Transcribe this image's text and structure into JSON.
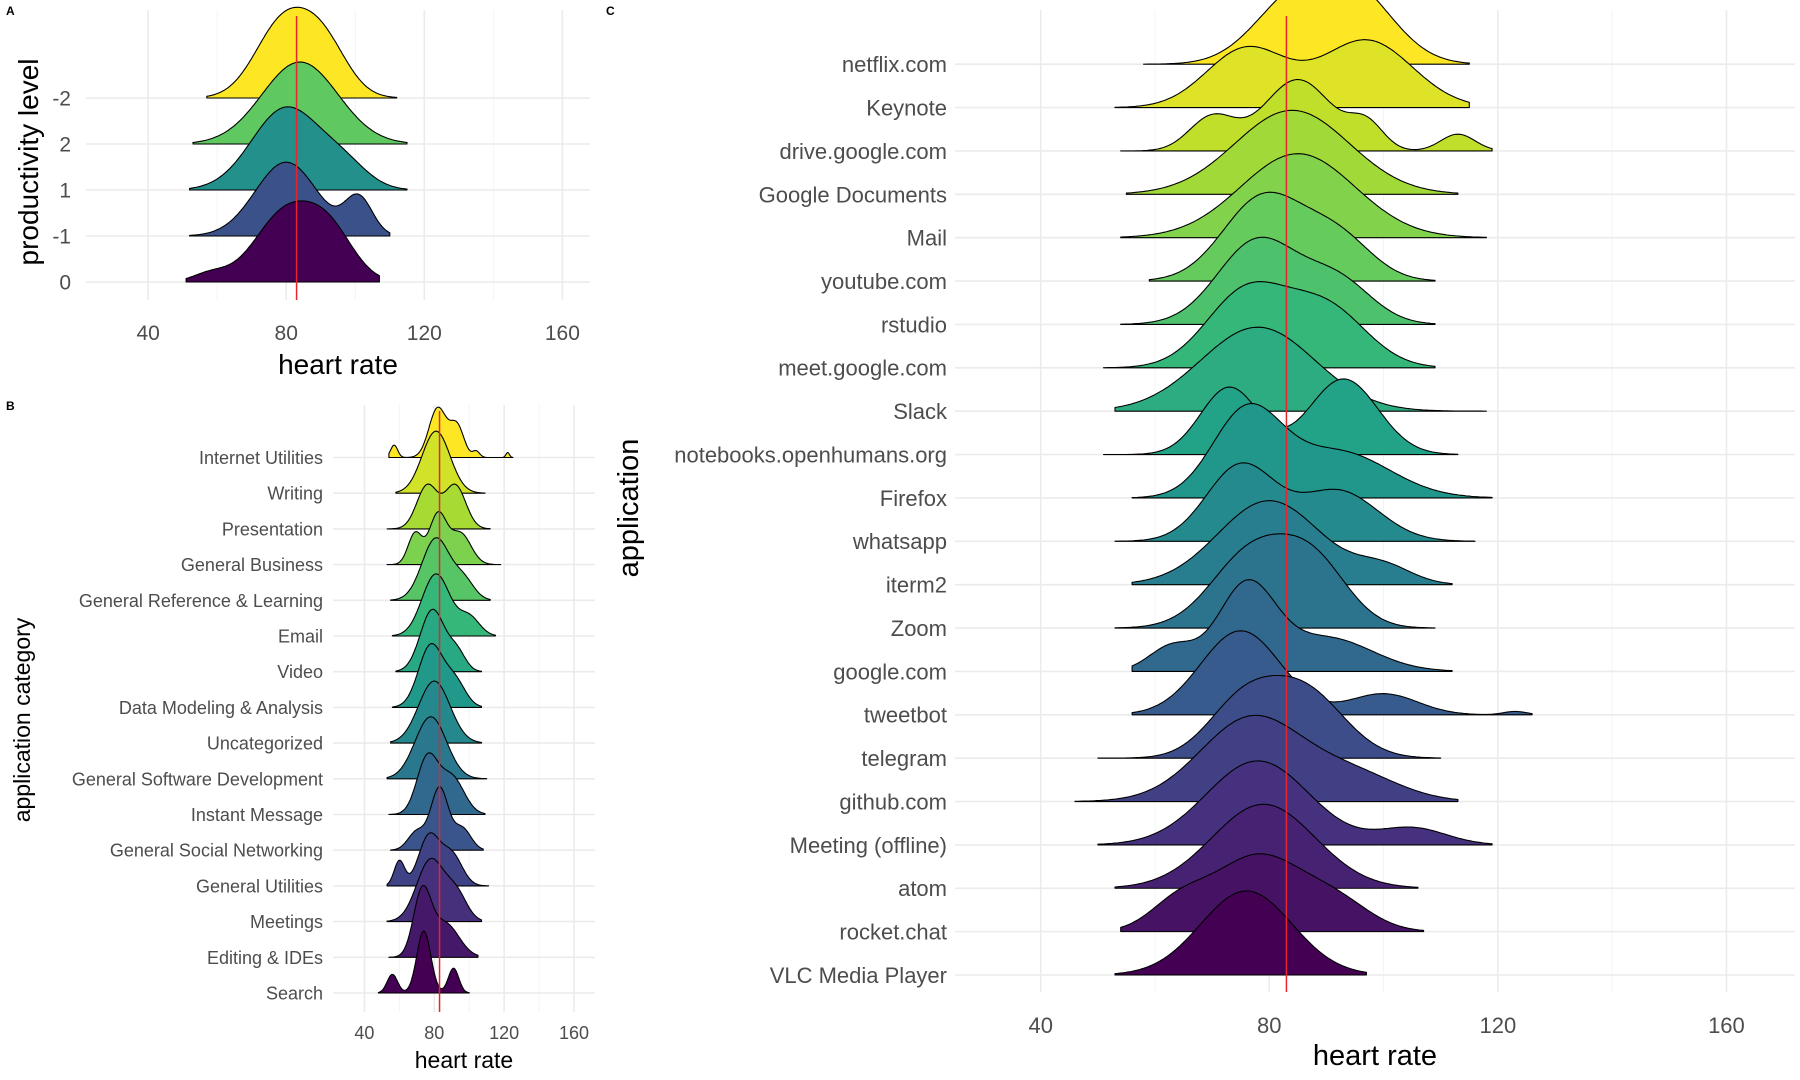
{
  "panel_tags": {
    "A": "A",
    "B": "B",
    "C": "C"
  },
  "colors": {
    "reference_line": "#e8242c",
    "palette": "viridis"
  },
  "chart_data": [
    {
      "id": "A",
      "type": "ridgeline",
      "xlabel": "heart rate",
      "ylabel": "productivity level",
      "xlim": [
        22,
        168
      ],
      "x_ticks": [
        40,
        80,
        120,
        160
      ],
      "reference_x": 83,
      "categories": [
        "0",
        "-1",
        "1",
        "2",
        "-2"
      ],
      "series": [
        {
          "name": "0",
          "range": [
            51,
            107
          ],
          "comps": [
            [
              58,
              5,
              0.1
            ],
            [
              80,
              9,
              0.85
            ],
            [
              93,
              7,
              0.5
            ]
          ]
        },
        {
          "name": "-1",
          "range": [
            52,
            110
          ],
          "comps": [
            [
              80,
              9,
              0.9
            ],
            [
              101,
              4,
              0.45
            ]
          ]
        },
        {
          "name": "1",
          "range": [
            52,
            115
          ],
          "comps": [
            [
              80,
              10,
              1.0
            ],
            [
              97,
              7,
              0.25
            ]
          ]
        },
        {
          "name": "2",
          "range": [
            53,
            115
          ],
          "comps": [
            [
              84,
              11,
              1.0
            ]
          ]
        },
        {
          "name": "-2",
          "range": [
            57,
            112
          ],
          "comps": [
            [
              79,
              8,
              0.9
            ],
            [
              91,
              7,
              0.6
            ]
          ]
        }
      ]
    },
    {
      "id": "B",
      "type": "ridgeline",
      "xlabel": "heart rate",
      "ylabel": "application category",
      "xlim": [
        22,
        172
      ],
      "x_ticks": [
        40,
        80,
        120,
        160
      ],
      "reference_x": 83,
      "categories": [
        "Search",
        "Editing & IDEs",
        "Meetings",
        "General Utilities",
        "General Social Networking",
        "Instant Message",
        "General Software Development",
        "Uncategorized",
        "Data Modeling & Analysis",
        "Video",
        "Email",
        "General Reference & Learning",
        "General Business",
        "Presentation",
        "Writing",
        "Internet Utilities"
      ],
      "series": [
        {
          "name": "Search",
          "range": [
            48,
            100
          ],
          "comps": [
            [
              56,
              3,
              0.3
            ],
            [
              74,
              4,
              1.0
            ],
            [
              91,
              3,
              0.4
            ]
          ]
        },
        {
          "name": "Editing & IDEs",
          "range": [
            54,
            105
          ],
          "comps": [
            [
              73,
              5,
              1.0
            ],
            [
              86,
              8,
              0.55
            ]
          ]
        },
        {
          "name": "Meetings",
          "range": [
            53,
            107
          ],
          "comps": [
            [
              78,
              8,
              1.0
            ],
            [
              93,
              6,
              0.4
            ]
          ]
        },
        {
          "name": "General Utilities",
          "range": [
            53,
            111
          ],
          "comps": [
            [
              60,
              3,
              0.4
            ],
            [
              77,
              6,
              0.8
            ],
            [
              90,
              6,
              0.5
            ]
          ]
        },
        {
          "name": "General Social Networking",
          "range": [
            55,
            108
          ],
          "comps": [
            [
              70,
              5,
              0.3
            ],
            [
              83,
              5,
              1.0
            ],
            [
              96,
              5,
              0.35
            ]
          ]
        },
        {
          "name": "Instant Message",
          "range": [
            54,
            109
          ],
          "comps": [
            [
              76,
              6,
              0.9
            ],
            [
              90,
              7,
              0.6
            ]
          ]
        },
        {
          "name": "General Software Development",
          "range": [
            53,
            110
          ],
          "comps": [
            [
              78,
              9,
              1.0
            ]
          ]
        },
        {
          "name": "Uncategorized",
          "range": [
            55,
            107
          ],
          "comps": [
            [
              80,
              9,
              1.0
            ]
          ]
        },
        {
          "name": "Data Modeling & Analysis",
          "range": [
            56,
            107
          ],
          "comps": [
            [
              78,
              7,
              1.0
            ],
            [
              92,
              6,
              0.4
            ]
          ]
        },
        {
          "name": "Video",
          "range": [
            58,
            107
          ],
          "comps": [
            [
              79,
              7,
              1.0
            ],
            [
              93,
              5,
              0.3
            ]
          ]
        },
        {
          "name": "Email",
          "range": [
            56,
            115
          ],
          "comps": [
            [
              81,
              8,
              1.0
            ],
            [
              100,
              6,
              0.3
            ]
          ]
        },
        {
          "name": "General Reference & Learning",
          "range": [
            55,
            112
          ],
          "comps": [
            [
              81,
              8,
              1.0
            ],
            [
              97,
              6,
              0.3
            ]
          ]
        },
        {
          "name": "General Business",
          "range": [
            53,
            118
          ],
          "comps": [
            [
              69,
              4,
              0.5
            ],
            [
              82,
              5,
              0.8
            ],
            [
              95,
              6,
              0.5
            ]
          ]
        },
        {
          "name": "Presentation",
          "range": [
            53,
            112
          ],
          "comps": [
            [
              76,
              6,
              0.7
            ],
            [
              92,
              6,
              0.7
            ]
          ]
        },
        {
          "name": "Writing",
          "range": [
            58,
            109
          ],
          "comps": [
            [
              81,
              8,
              1.0
            ]
          ]
        },
        {
          "name": "Internet Utilities",
          "range": [
            54,
            125
          ],
          "comps": [
            [
              57,
              2,
              0.2
            ],
            [
              82,
              5,
              0.8
            ],
            [
              93,
              4,
              0.5
            ],
            [
              104,
              2,
              0.1
            ],
            [
              122,
              1,
              0.08
            ]
          ]
        }
      ]
    },
    {
      "id": "C",
      "type": "ridgeline",
      "xlabel": "heart rate",
      "ylabel": "application",
      "xlim": [
        25,
        172
      ],
      "x_ticks": [
        40,
        80,
        120,
        160
      ],
      "reference_x": 83,
      "categories": [
        "VLC Media Player",
        "rocket.chat",
        "atom",
        "Meeting (offline)",
        "github.com",
        "telegram",
        "tweetbot",
        "google.com",
        "Zoom",
        "iterm2",
        "whatsapp",
        "Firefox",
        "notebooks.openhumans.org",
        "Slack",
        "meet.google.com",
        "rstudio",
        "youtube.com",
        "Mail",
        "Google Documents",
        "drive.google.com",
        "Keynote",
        "netflix.com"
      ],
      "series": [
        {
          "name": "VLC Media Player",
          "range": [
            53,
            97
          ],
          "comps": [
            [
              76,
              8,
              1.0
            ]
          ]
        },
        {
          "name": "rocket.chat",
          "range": [
            54,
            107
          ],
          "comps": [
            [
              64,
              5,
              0.3
            ],
            [
              78,
              8,
              0.9
            ],
            [
              92,
              6,
              0.3
            ]
          ]
        },
        {
          "name": "atom",
          "range": [
            53,
            106
          ],
          "comps": [
            [
              79,
              9,
              1.0
            ]
          ]
        },
        {
          "name": "Meeting (offline)",
          "range": [
            50,
            119
          ],
          "comps": [
            [
              78,
              9,
              1.0
            ],
            [
              105,
              6,
              0.2
            ]
          ]
        },
        {
          "name": "github.com",
          "range": [
            46,
            113
          ],
          "comps": [
            [
              77,
              9,
              1.0
            ],
            [
              95,
              8,
              0.3
            ]
          ]
        },
        {
          "name": "telegram",
          "range": [
            50,
            110
          ],
          "comps": [
            [
              75,
              6,
              0.6
            ],
            [
              86,
              7,
              0.8
            ]
          ]
        },
        {
          "name": "tweetbot",
          "range": [
            56,
            126
          ],
          "comps": [
            [
              75,
              7,
              1.0
            ],
            [
              100,
              6,
              0.25
            ],
            [
              123,
              2,
              0.04
            ]
          ]
        },
        {
          "name": "google.com",
          "range": [
            56,
            112
          ],
          "comps": [
            [
              63,
              4,
              0.3
            ],
            [
              76,
              5,
              1.0
            ],
            [
              90,
              8,
              0.4
            ]
          ]
        },
        {
          "name": "Zoom",
          "range": [
            53,
            109
          ],
          "comps": [
            [
              77,
              7,
              0.9
            ],
            [
              88,
              6,
              0.7
            ]
          ]
        },
        {
          "name": "iterm2",
          "range": [
            56,
            112
          ],
          "comps": [
            [
              80,
              9,
              1.0
            ],
            [
              100,
              5,
              0.2
            ]
          ]
        },
        {
          "name": "whatsapp",
          "range": [
            53,
            116
          ],
          "comps": [
            [
              75,
              6,
              0.9
            ],
            [
              92,
              7,
              0.6
            ]
          ]
        },
        {
          "name": "Firefox",
          "range": [
            56,
            119
          ],
          "comps": [
            [
              76,
              6,
              1.0
            ],
            [
              92,
              9,
              0.55
            ]
          ]
        },
        {
          "name": "notebooks.openhumans.org",
          "range": [
            51,
            113
          ],
          "comps": [
            [
              73,
              5,
              0.8
            ],
            [
              93,
              6,
              0.9
            ]
          ]
        },
        {
          "name": "Slack",
          "range": [
            53,
            118
          ],
          "comps": [
            [
              78,
              10,
              1.0
            ]
          ]
        },
        {
          "name": "meet.google.com",
          "range": [
            51,
            109
          ],
          "comps": [
            [
              76,
              7,
              0.9
            ],
            [
              90,
              7,
              0.7
            ]
          ]
        },
        {
          "name": "rstudio",
          "range": [
            54,
            109
          ],
          "comps": [
            [
              78,
              7,
              1.0
            ],
            [
              92,
              6,
              0.5
            ]
          ]
        },
        {
          "name": "youtube.com",
          "range": [
            59,
            109
          ],
          "comps": [
            [
              79,
              7,
              1.0
            ],
            [
              92,
              6,
              0.5
            ]
          ]
        },
        {
          "name": "Mail",
          "range": [
            54,
            118
          ],
          "comps": [
            [
              85,
              10,
              1.0
            ]
          ]
        },
        {
          "name": "Google Documents",
          "range": [
            55,
            113
          ],
          "comps": [
            [
              84,
              10,
              1.0
            ]
          ]
        },
        {
          "name": "drive.google.com",
          "range": [
            54,
            119
          ],
          "comps": [
            [
              70,
              4,
              0.4
            ],
            [
              85,
              6,
              0.85
            ],
            [
              97,
              3,
              0.3
            ],
            [
              113,
              3,
              0.2
            ]
          ]
        },
        {
          "name": "Keynote",
          "range": [
            53,
            115
          ],
          "comps": [
            [
              76,
              7,
              0.7
            ],
            [
              97,
              8,
              0.8
            ]
          ]
        },
        {
          "name": "netflix.com",
          "range": [
            58,
            115
          ],
          "comps": [
            [
              84,
              7,
              0.7
            ],
            [
              95,
              7,
              0.8
            ]
          ]
        }
      ]
    }
  ]
}
